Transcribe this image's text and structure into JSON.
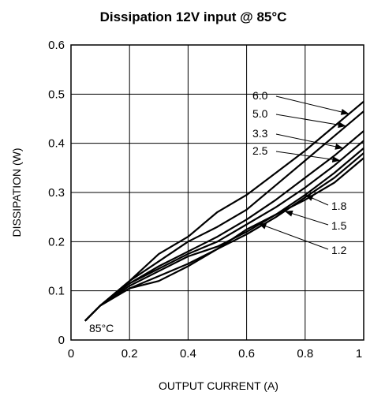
{
  "chart_data": {
    "type": "line",
    "title": "Dissipation 12V input @ 85°C",
    "xlabel": "OUTPUT CURRENT (A)",
    "ylabel": "DISSIPATION (W)",
    "xlim": [
      0,
      1
    ],
    "ylim": [
      0,
      0.6
    ],
    "xticks": [
      "0",
      "0.2",
      "0.4",
      "0.6",
      "0.8",
      "1"
    ],
    "yticks": [
      "0",
      "0.1",
      "0.2",
      "0.3",
      "0.4",
      "0.5",
      "0.6"
    ],
    "grid": true,
    "annotation": "85°C",
    "series": [
      {
        "name": "6.0",
        "x": [
          0.05,
          0.1,
          0.2,
          0.3,
          0.4,
          0.5,
          0.6,
          0.7,
          0.8,
          0.9,
          1.0
        ],
        "y": [
          0.04,
          0.07,
          0.12,
          0.175,
          0.21,
          0.26,
          0.295,
          0.34,
          0.385,
          0.435,
          0.485
        ]
      },
      {
        "name": "5.0",
        "x": [
          0.05,
          0.1,
          0.2,
          0.3,
          0.4,
          0.5,
          0.6,
          0.7,
          0.8,
          0.9,
          1.0
        ],
        "y": [
          0.04,
          0.07,
          0.12,
          0.16,
          0.2,
          0.23,
          0.265,
          0.315,
          0.365,
          0.415,
          0.465
        ]
      },
      {
        "name": "3.3",
        "x": [
          0.05,
          0.1,
          0.2,
          0.3,
          0.4,
          0.5,
          0.6,
          0.7,
          0.8,
          0.9,
          1.0
        ],
        "y": [
          0.04,
          0.07,
          0.115,
          0.15,
          0.18,
          0.21,
          0.245,
          0.285,
          0.33,
          0.375,
          0.425
        ]
      },
      {
        "name": "2.5",
        "x": [
          0.05,
          0.1,
          0.2,
          0.3,
          0.4,
          0.5,
          0.6,
          0.7,
          0.8,
          0.9,
          1.0
        ],
        "y": [
          0.04,
          0.07,
          0.115,
          0.145,
          0.175,
          0.2,
          0.235,
          0.27,
          0.31,
          0.355,
          0.405
        ]
      },
      {
        "name": "1.8",
        "x": [
          0.05,
          0.1,
          0.2,
          0.3,
          0.4,
          0.5,
          0.6,
          0.7,
          0.8,
          0.9,
          1.0
        ],
        "y": [
          0.04,
          0.07,
          0.11,
          0.14,
          0.17,
          0.19,
          0.22,
          0.255,
          0.295,
          0.34,
          0.39
        ]
      },
      {
        "name": "1.5",
        "x": [
          0.05,
          0.1,
          0.2,
          0.3,
          0.4,
          0.5,
          0.6,
          0.7,
          0.8,
          0.9,
          1.0
        ],
        "y": [
          0.04,
          0.07,
          0.105,
          0.13,
          0.155,
          0.185,
          0.215,
          0.25,
          0.29,
          0.33,
          0.38
        ]
      },
      {
        "name": "1.2",
        "x": [
          0.05,
          0.1,
          0.2,
          0.3,
          0.4,
          0.5,
          0.6,
          0.7,
          0.8,
          0.9,
          1.0
        ],
        "y": [
          0.04,
          0.07,
          0.105,
          0.12,
          0.15,
          0.185,
          0.225,
          0.255,
          0.285,
          0.32,
          0.37
        ]
      }
    ],
    "labels": [
      {
        "text": "6.0",
        "series": "6.0",
        "at_x": 0.95
      },
      {
        "text": "5.0",
        "series": "5.0",
        "at_x": 0.94
      },
      {
        "text": "3.3",
        "series": "3.3",
        "at_x": 0.93
      },
      {
        "text": "2.5",
        "series": "2.5",
        "at_x": 0.92
      },
      {
        "text": "1.8",
        "series": "1.8",
        "at_x": 0.8
      },
      {
        "text": "1.5",
        "series": "1.5",
        "at_x": 0.73
      },
      {
        "text": "1.2",
        "series": "1.2",
        "at_x": 0.64
      }
    ]
  }
}
